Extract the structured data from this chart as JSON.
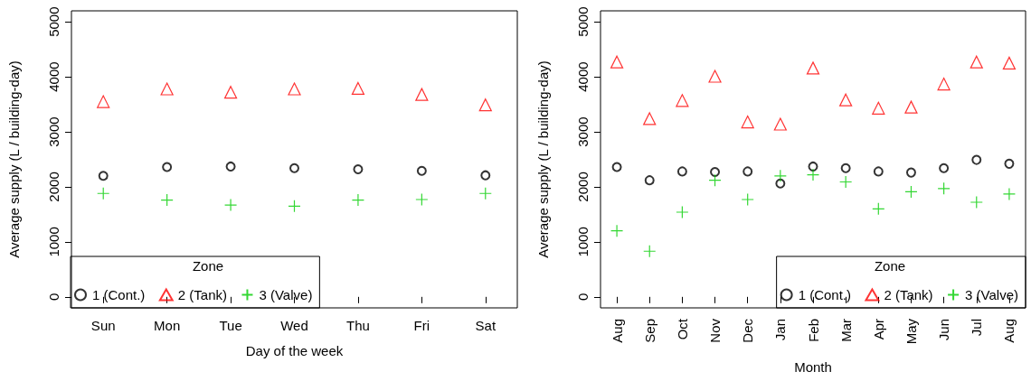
{
  "chart_data": [
    {
      "type": "scatter",
      "xlabel": "Day of the week",
      "ylabel": "Average supply (L / building-day)",
      "legend_title": "Zone",
      "legend": "bottom left",
      "categories": [
        "Sun",
        "Mon",
        "Tue",
        "Wed",
        "Thu",
        "Fri",
        "Sat"
      ],
      "series": [
        {
          "name": "1 (Cont.)",
          "color": "#000000",
          "marker": "circle",
          "values": [
            2200,
            2360,
            2370,
            2340,
            2320,
            2290,
            2210
          ]
        },
        {
          "name": "2 (Tank)",
          "color": "#ff0000",
          "marker": "triangle",
          "values": [
            3550,
            3780,
            3720,
            3780,
            3790,
            3680,
            3490
          ]
        },
        {
          "name": "3 (Valve)",
          "color": "#00cd00",
          "marker": "cross",
          "values": [
            1880,
            1760,
            1670,
            1650,
            1760,
            1770,
            1880
          ]
        }
      ],
      "ylim": [
        -200,
        5200
      ],
      "yticks": [
        0,
        1000,
        2000,
        3000,
        4000,
        5000
      ]
    },
    {
      "type": "scatter",
      "xlabel": "Month",
      "ylabel": "Average supply (L / building-day)",
      "legend_title": "Zone",
      "legend": "bottom right",
      "categories": [
        "Aug",
        "Sep",
        "Oct",
        "Nov",
        "Dec",
        "Jan",
        "Feb",
        "Mar",
        "Apr",
        "May",
        "Jun",
        "Jul",
        "Aug"
      ],
      "series": [
        {
          "name": "1 (Cont.)",
          "color": "#000000",
          "marker": "circle",
          "values": [
            2360,
            2120,
            2280,
            2270,
            2280,
            2060,
            2370,
            2340,
            2280,
            2260,
            2340,
            2490,
            2420
          ]
        },
        {
          "name": "2 (Tank)",
          "color": "#ff0000",
          "marker": "triangle",
          "values": [
            4270,
            3240,
            3570,
            4010,
            3180,
            3140,
            4160,
            3580,
            3430,
            3450,
            3870,
            4270,
            4250
          ]
        },
        {
          "name": "3 (Valve)",
          "color": "#00cd00",
          "marker": "cross",
          "values": [
            1200,
            830,
            1540,
            2120,
            1770,
            2200,
            2220,
            2090,
            1600,
            1910,
            1970,
            1720,
            1870
          ]
        }
      ],
      "ylim": [
        -200,
        5200
      ],
      "yticks": [
        0,
        1000,
        2000,
        3000,
        4000,
        5000
      ]
    }
  ]
}
